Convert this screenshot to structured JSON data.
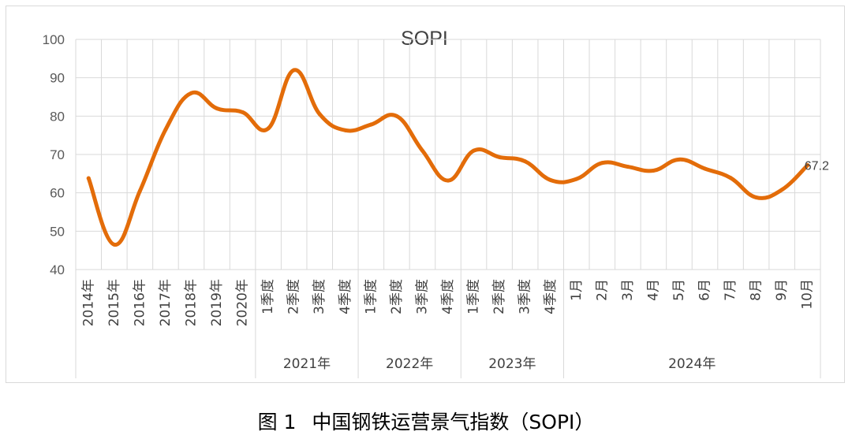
{
  "chart_data": {
    "type": "line",
    "title": "SOPI",
    "ylim": [
      40,
      100
    ],
    "yticks": [
      40,
      50,
      60,
      70,
      80,
      90,
      100
    ],
    "grid": true,
    "categories": [
      "2014年",
      "2015年",
      "2016年",
      "2017年",
      "2018年",
      "2019年",
      "2020年",
      "1季度",
      "2季度",
      "3季度",
      "4季度",
      "1季度",
      "2季度",
      "3季度",
      "4季度",
      "1季度",
      "2季度",
      "3季度",
      "4季度",
      "1月",
      "2月",
      "3月",
      "4月",
      "5月",
      "6月",
      "7月",
      "8月",
      "9月",
      "10月"
    ],
    "groups": [
      {
        "label": "2021年",
        "start": 7,
        "end": 10
      },
      {
        "label": "2022年",
        "start": 11,
        "end": 14
      },
      {
        "label": "2023年",
        "start": 15,
        "end": 18
      },
      {
        "label": "2024年",
        "start": 19,
        "end": 28
      }
    ],
    "series": [
      {
        "name": "SOPI",
        "color": "#e36c09",
        "values": [
          63.8,
          46.5,
          60.5,
          76.5,
          86.0,
          82.0,
          81.0,
          76.8,
          92.0,
          80.5,
          76.3,
          77.8,
          80.0,
          71.0,
          63.2,
          71.0,
          69.3,
          68.2,
          63.3,
          63.6,
          67.8,
          66.8,
          65.8,
          68.7,
          66.3,
          63.9,
          58.8,
          60.8,
          67.2
        ]
      }
    ],
    "end_label": "67.2"
  },
  "caption": {
    "figure_label": "图 1",
    "text": "中国钢铁运营景气指数（SOPI）"
  }
}
